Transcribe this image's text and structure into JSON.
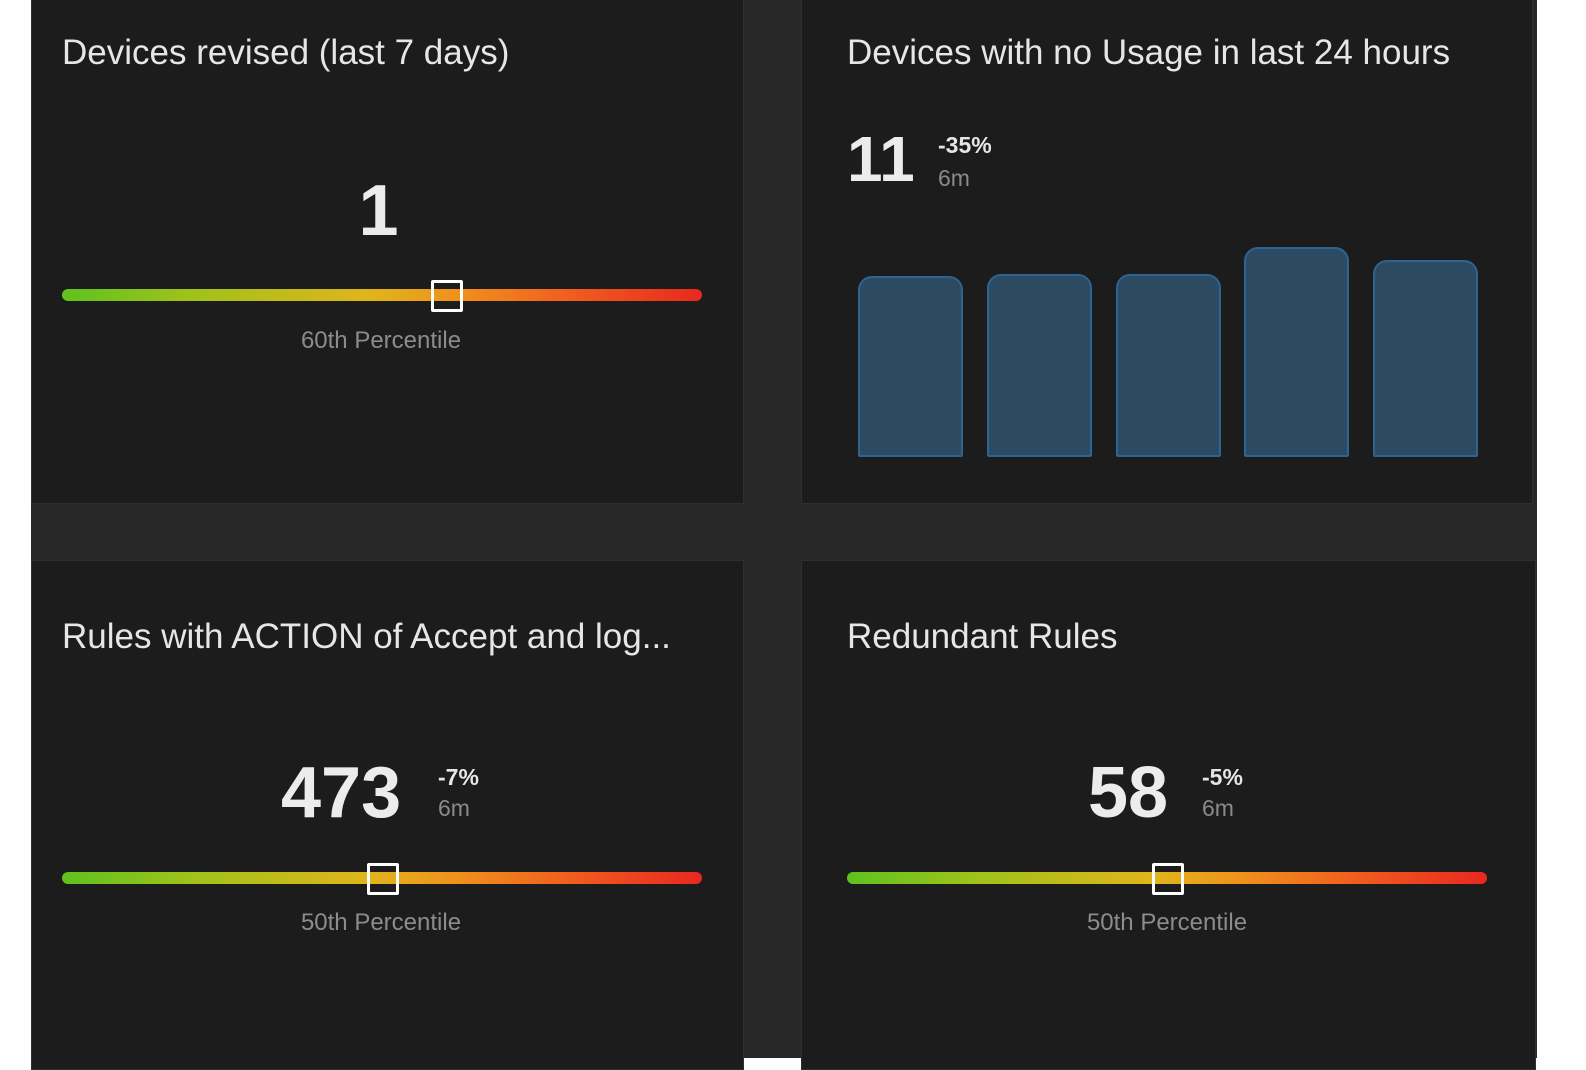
{
  "cards": [
    {
      "title": "Devices revised (last 7 days)",
      "value": "1",
      "gauge": {
        "percentile_label": "60th Percentile",
        "position_pct": 60
      }
    },
    {
      "title": "Devices with no Usage in last 24 hours",
      "value": "11",
      "delta": "-35%",
      "period": "6m",
      "chart_data": {
        "type": "bar",
        "values": [
          0.86,
          0.87,
          0.87,
          1.0,
          0.94
        ],
        "bar_color": "#2c4a62",
        "bar_border_color": "#2f6391"
      }
    },
    {
      "title": "Rules with ACTION of Accept and log...",
      "value": "473",
      "delta": "-7%",
      "period": "6m",
      "gauge": {
        "percentile_label": "50th Percentile",
        "position_pct": 50
      }
    },
    {
      "title": "Redundant Rules",
      "value": "58",
      "delta": "-5%",
      "period": "6m",
      "gauge": {
        "percentile_label": "50th Percentile",
        "position_pct": 50
      }
    }
  ],
  "colors": {
    "background": "#272727",
    "card": "#1c1c1c",
    "gauge_start": "#5ec21f",
    "gauge_mid": "#e0b51b",
    "gauge_end": "#e8281f"
  }
}
